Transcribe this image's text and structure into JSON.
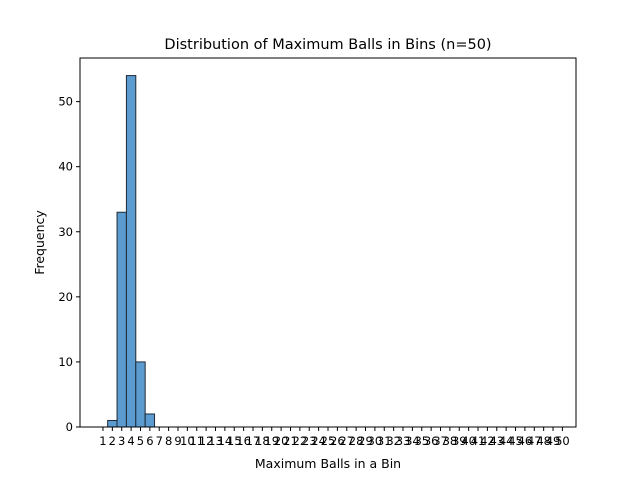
{
  "chart_data": {
    "type": "bar",
    "title": "Distribution of Maximum Balls in Bins (n=50)",
    "xlabel": "Maximum Balls in a Bin",
    "ylabel": "Frequency",
    "x_ticks": [
      1,
      2,
      3,
      4,
      5,
      6,
      7,
      8,
      9,
      10,
      11,
      12,
      13,
      14,
      15,
      16,
      17,
      18,
      19,
      20,
      21,
      22,
      23,
      24,
      25,
      26,
      27,
      28,
      29,
      30,
      31,
      32,
      33,
      34,
      35,
      36,
      37,
      38,
      39,
      40,
      41,
      42,
      43,
      44,
      45,
      46,
      47,
      48,
      49,
      50
    ],
    "y_ticks": [
      0,
      10,
      20,
      30,
      40,
      50
    ],
    "xlim": [
      -1.45,
      51.45
    ],
    "ylim": [
      0,
      56.7
    ],
    "bars": [
      {
        "x": 2,
        "value": 1
      },
      {
        "x": 3,
        "value": 33
      },
      {
        "x": 4,
        "value": 54
      },
      {
        "x": 5,
        "value": 10
      },
      {
        "x": 6,
        "value": 2
      }
    ],
    "grid": false,
    "bar_color": "#5b9bd0",
    "edge_color": "#1f2a36"
  }
}
